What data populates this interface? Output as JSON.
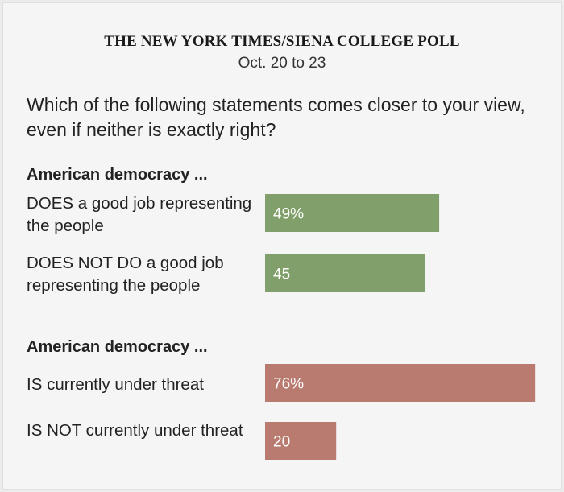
{
  "header": {
    "source": "THE NEW YORK TIMES/SIENA COLLEGE POLL",
    "dates": "Oct. 20 to 23"
  },
  "question": "Which of the following statements comes closer to your view, even if neither is exactly right?",
  "colors": {
    "positive": "#809f6b",
    "negative": "#b97b6f",
    "label": "#ffffff"
  },
  "chart_data": {
    "type": "bar",
    "orientation": "horizontal",
    "xlim": [
      0,
      100
    ],
    "groups": [
      {
        "title": "American democracy ...",
        "color": "#809f6b",
        "rows": [
          {
            "label": "DOES a good job representing the people",
            "value": 49,
            "display": "49%"
          },
          {
            "label": "DOES NOT DO a good job representing the people",
            "value": 45,
            "display": "45"
          }
        ]
      },
      {
        "title": "American democracy ...",
        "color": "#b97b6f",
        "rows": [
          {
            "label": "IS currently under threat",
            "value": 76,
            "display": "76%"
          },
          {
            "label": "IS NOT currently under threat",
            "value": 20,
            "display": "20"
          }
        ]
      }
    ]
  }
}
